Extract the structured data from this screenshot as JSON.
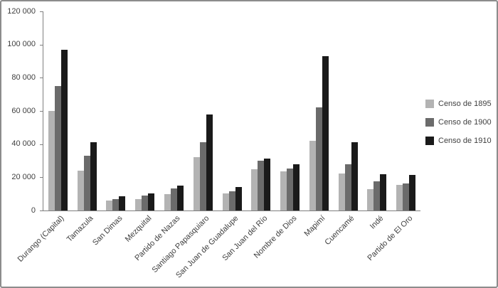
{
  "chart_data": {
    "type": "bar",
    "title": "",
    "categories": [
      "Durango (Capital)",
      "Tamazula",
      "San Dimas",
      "Mezquital",
      "Partido de Nazas",
      "Santiago Papasquiaro",
      "San Juan de Guadalupe",
      "San Juan del Río",
      "Nombre de Dios",
      "Mapimí",
      "Cuencamé",
      "Indé",
      "Partido de El Oro"
    ],
    "series": [
      {
        "name": "Censo de 1895",
        "color": "#b3b3b3",
        "values": [
          60000,
          24000,
          6000,
          7000,
          10000,
          32000,
          10500,
          25000,
          23500,
          42000,
          22500,
          13000,
          15500
        ]
      },
      {
        "name": "Censo de 1900",
        "color": "#6b6b6b",
        "values": [
          75000,
          33000,
          7000,
          9000,
          13500,
          41000,
          11500,
          30000,
          25500,
          62000,
          28000,
          17500,
          16500
        ]
      },
      {
        "name": "Censo de 1910",
        "color": "#1a1a1a",
        "values": [
          97000,
          41000,
          8500,
          10500,
          15000,
          58000,
          14000,
          31500,
          28000,
          93000,
          41000,
          22000,
          21500
        ]
      }
    ],
    "ylim": [
      0,
      120000
    ],
    "ytick_step": 20000,
    "ytick_labels": [
      "0",
      "20 000",
      "40 000",
      "60 000",
      "80 000",
      "100 000",
      "120 000"
    ],
    "xlabel": "",
    "ylabel": "",
    "grid": false,
    "legend_position": "right"
  }
}
